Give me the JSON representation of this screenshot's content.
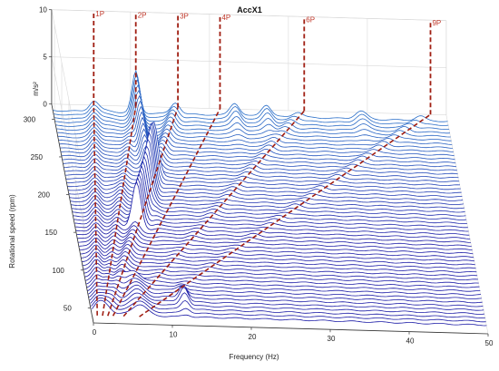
{
  "chart_data": {
    "type": "waterfall",
    "title": "AccX1",
    "xlabel": "Frequency (Hz)",
    "ylabel": "Rotational speed (rpm)",
    "zlabel": "m/s²",
    "xlim": [
      0,
      50
    ],
    "ylim": [
      30,
      320
    ],
    "zlim": [
      0,
      10
    ],
    "x_ticks": [
      "0",
      "10",
      "20",
      "30",
      "40",
      "50"
    ],
    "y_ticks": [
      "50",
      "100",
      "150",
      "200",
      "250",
      "300"
    ],
    "z_ticks": [
      "0",
      "5",
      "10"
    ],
    "order_lines": [
      {
        "label": "1P",
        "order": 1
      },
      {
        "label": "2P",
        "order": 2
      },
      {
        "label": "3P",
        "order": 3
      },
      {
        "label": "4P",
        "order": 4
      },
      {
        "label": "6P",
        "order": 6
      },
      {
        "label": "9P",
        "order": 9
      }
    ],
    "rpm_min": 40,
    "rpm_max": 310,
    "rpm_step": 5,
    "grid": true
  },
  "colors": {
    "spectrum_low": "#1a1aa6",
    "spectrum_high": "#35a8e0",
    "order_line": "#a01e12",
    "order_label": "#c0392b",
    "axis": "#333333",
    "grid": "#d9d9d9"
  }
}
